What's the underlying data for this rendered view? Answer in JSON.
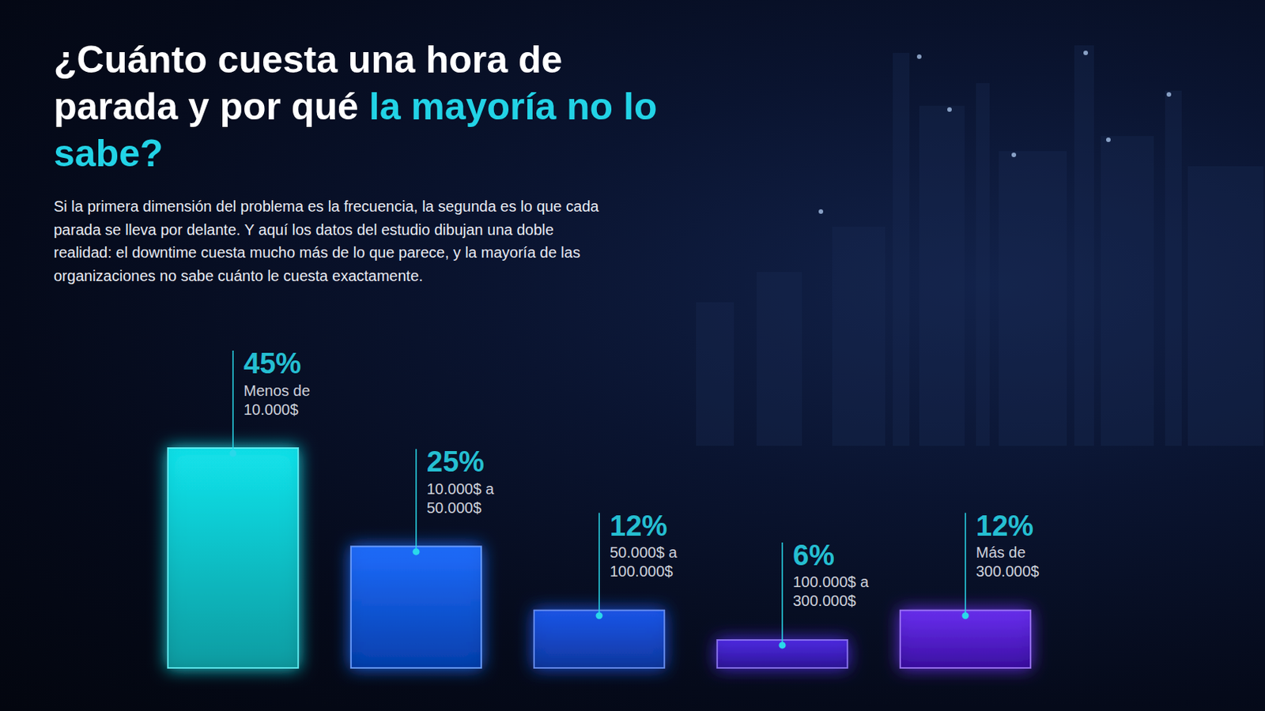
{
  "chart_data": {
    "type": "bar",
    "title": [
      "¿Cuánto cuesta una hora de parada y por qué",
      "la mayoría no lo sabe?"
    ],
    "subtitle": "Si la primera dimensión del problema es la frecuencia, la segunda es lo que cada parada se lleva por delante. Y aquí los datos del estudio dibujan una doble realidad: el downtime cuesta mucho más de lo que parece, y la mayoría de las organizaciones no sabe cuánto le cuesta exactamente.",
    "categories": [
      "Menos de 10.000$",
      "10.000$ a 50.000$",
      "50.000$ a 100.000$",
      "100.000$ a 300.000$",
      "Más de 300.000$"
    ],
    "values": [
      45,
      25,
      12,
      6,
      12
    ],
    "value_labels": [
      "45%",
      "25%",
      "12%",
      "6%",
      "12%"
    ],
    "colors": [
      "#12e6ee",
      "#1f6dff",
      "#1a56ec",
      "#4f2be6",
      "#6a2ff2"
    ],
    "ylim": [
      0,
      45
    ],
    "grid": false,
    "tick_labels": false,
    "data_labels": true
  }
}
